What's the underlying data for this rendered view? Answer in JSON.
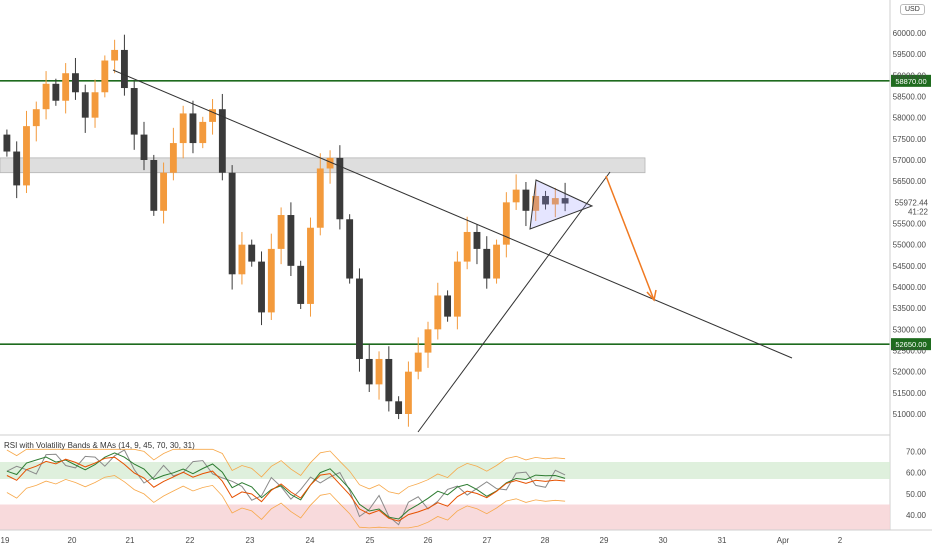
{
  "chart_data": {
    "type": "candlestick",
    "currency": "USD",
    "price_axis": {
      "ticks": [
        "60000.00",
        "59500.00",
        "59000.00",
        "58500.00",
        "58000.00",
        "57500.00",
        "57000.00",
        "56500.00",
        "56000.00",
        "55500.00",
        "55000.00",
        "54500.00",
        "54000.00",
        "53500.00",
        "53000.00",
        "52500.00",
        "52000.00",
        "51500.00",
        "51000.00"
      ],
      "top_label": "6(",
      "ylim": [
        51000,
        60400
      ]
    },
    "x_axis": {
      "ticks": [
        "19",
        "20",
        "21",
        "22",
        "23",
        "24",
        "25",
        "26",
        "27",
        "28",
        "29",
        "30",
        "31",
        "Apr",
        "2"
      ]
    },
    "levels": [
      {
        "price": 58870,
        "label": "58870.00",
        "color": "#1e6b1e"
      },
      {
        "price": 52650,
        "label": "52650.00",
        "color": "#1e6b1e"
      }
    ],
    "current_price": {
      "label": "55972.44",
      "countdown": "41:22"
    },
    "resistance_zone": {
      "from": 56700,
      "to": 57050
    },
    "closes": [
      57200,
      56400,
      57800,
      58200,
      58800,
      58400,
      59050,
      58600,
      58000,
      58600,
      59350,
      59600,
      58700,
      57600,
      57000,
      55800,
      56700,
      57400,
      58100,
      57400,
      57900,
      58200,
      56700,
      54300,
      55000,
      54600,
      53400,
      54900,
      55700,
      54500,
      53600,
      55400,
      56800,
      57050,
      55600,
      54200,
      52300,
      51700,
      52300,
      51300,
      51000,
      52000,
      52450,
      53000,
      53800,
      53300,
      54600,
      55300,
      54900,
      54200,
      55000,
      56000,
      56300,
      55800,
      56150,
      55950,
      56100,
      55972
    ],
    "indicator": {
      "label": "RSI with Volatility Bands & MAs (14, 9, 45, 70, 30, 31)",
      "ticks": [
        "70.00",
        "60.00",
        "50.00",
        "40.00"
      ],
      "ylim": [
        33,
        73
      ]
    }
  }
}
